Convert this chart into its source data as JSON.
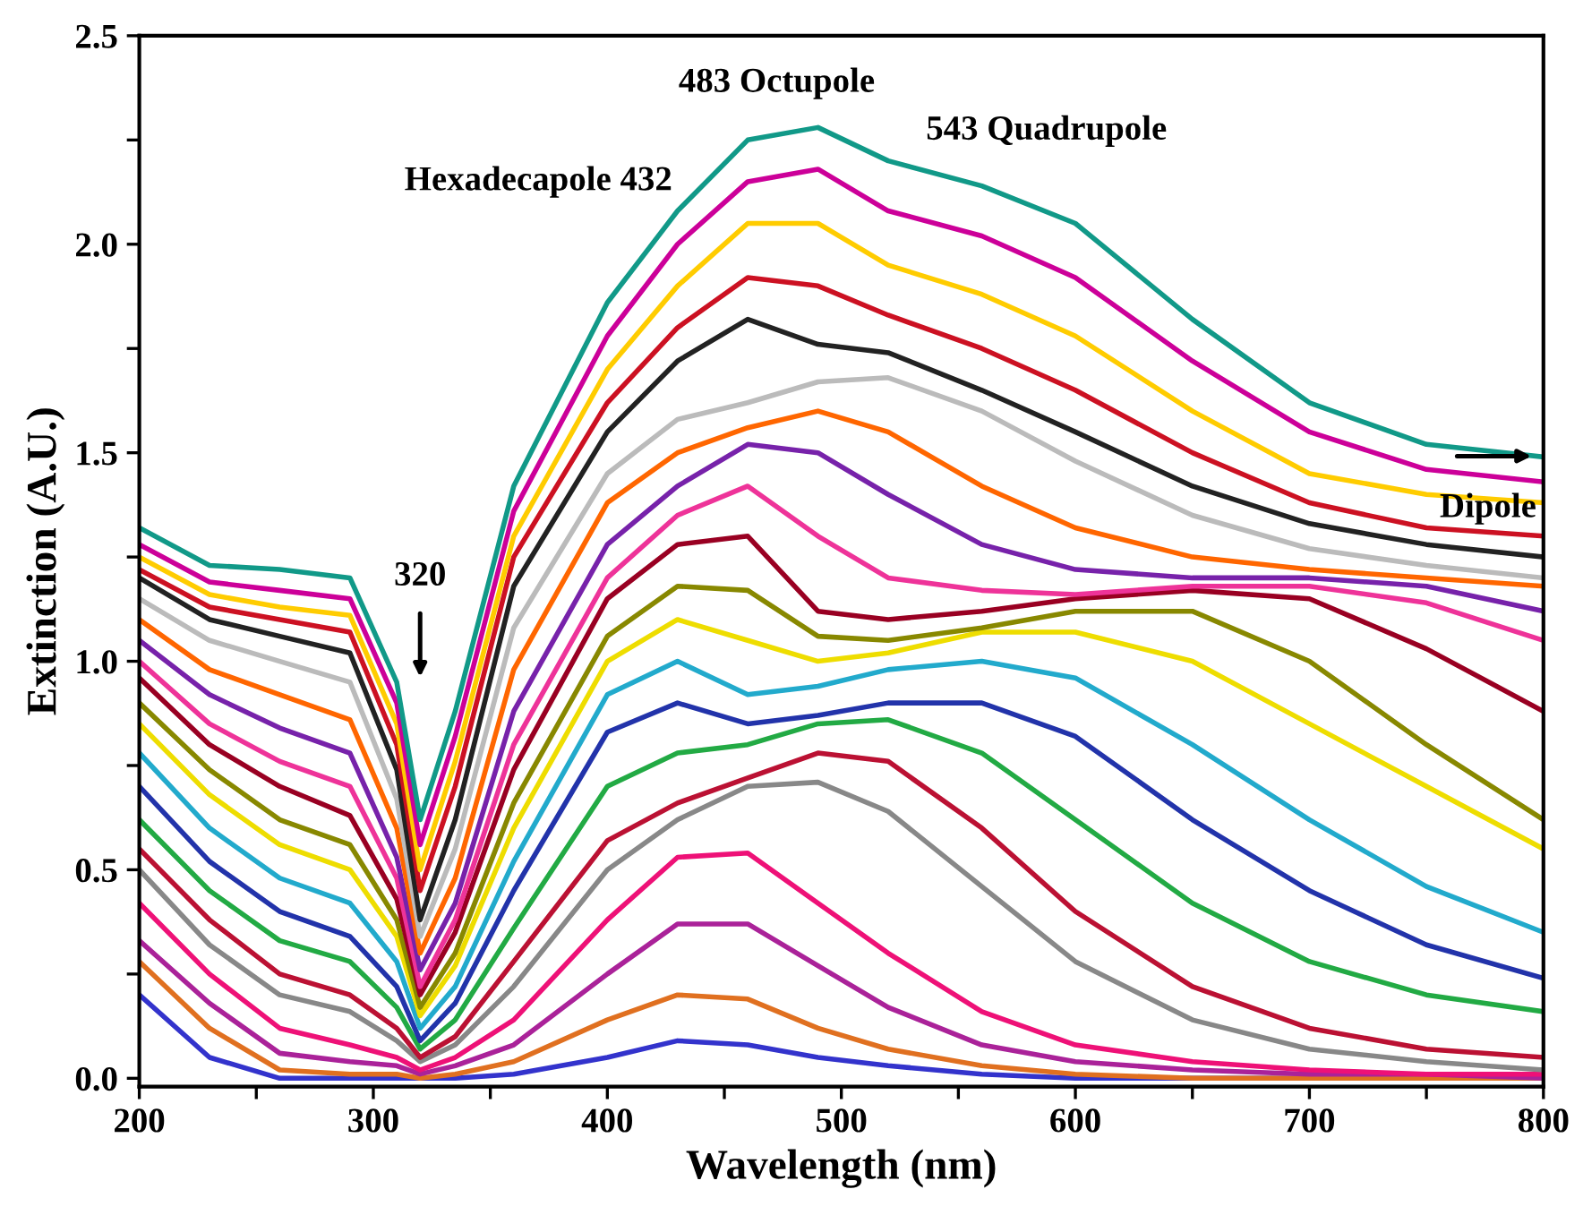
{
  "chart_data": {
    "type": "line",
    "xlabel": "Wavelength (nm)",
    "ylabel": "Extinction (A.U.)",
    "x": [
      200,
      230,
      260,
      290,
      310,
      320,
      335,
      360,
      400,
      430,
      460,
      490,
      520,
      560,
      600,
      650,
      700,
      750,
      800
    ],
    "xlim": [
      200,
      800
    ],
    "ylim": [
      -0.02,
      2.5
    ],
    "xticks": [
      200,
      {
        "value": 250,
        "label": null
      },
      300,
      {
        "value": 350,
        "label": null
      },
      400,
      {
        "value": 450,
        "label": null
      },
      500,
      {
        "value": 550,
        "label": null
      },
      600,
      {
        "value": 650,
        "label": null
      },
      700,
      {
        "value": 750,
        "label": null
      },
      800
    ],
    "yticks": [
      {
        "value": 0,
        "label": "0.0"
      },
      {
        "value": 0.25,
        "label": null
      },
      0.5,
      {
        "value": 0.75,
        "label": null
      },
      {
        "value": 1,
        "label": "1.0"
      },
      {
        "value": 1.25,
        "label": null
      },
      1.5,
      {
        "value": 1.75,
        "label": null
      },
      {
        "value": 2,
        "label": "2.0"
      },
      {
        "value": 2.25,
        "label": null
      },
      2.5
    ],
    "grid": false,
    "marker": "none",
    "line_style": "solid",
    "series": [
      {
        "color": "#3333cc",
        "values": [
          0.2,
          0.05,
          0.0,
          0.0,
          0.0,
          0.0,
          0.0,
          0.01,
          0.05,
          0.09,
          0.08,
          0.05,
          0.03,
          0.01,
          0.0,
          0.0,
          0.0,
          null,
          null
        ]
      },
      {
        "color": "#e07020",
        "values": [
          0.28,
          0.12,
          0.02,
          0.01,
          0.01,
          0.0,
          0.01,
          0.04,
          0.14,
          0.2,
          0.19,
          0.12,
          0.07,
          0.03,
          0.01,
          0.0,
          0.0,
          0.0,
          0.0
        ]
      },
      {
        "color": "#aa2299",
        "values": [
          0.33,
          0.18,
          0.06,
          0.04,
          0.03,
          0.01,
          0.03,
          0.08,
          0.25,
          0.37,
          0.37,
          0.27,
          0.17,
          0.08,
          0.04,
          0.02,
          0.01,
          0.01,
          0.0
        ]
      },
      {
        "color": "#ee1177",
        "values": [
          0.42,
          0.25,
          0.12,
          0.08,
          0.05,
          0.02,
          0.05,
          0.14,
          0.38,
          0.53,
          0.54,
          0.42,
          0.3,
          0.16,
          0.08,
          0.04,
          0.02,
          0.01,
          0.01
        ]
      },
      {
        "color": "#888888",
        "values": [
          0.5,
          0.32,
          0.2,
          0.16,
          0.09,
          0.04,
          0.08,
          0.22,
          0.5,
          0.62,
          0.7,
          0.71,
          0.64,
          0.46,
          0.28,
          0.14,
          0.07,
          0.04,
          0.02
        ]
      },
      {
        "color": "#bb1133",
        "values": [
          0.55,
          0.38,
          0.25,
          0.2,
          0.12,
          0.05,
          0.1,
          0.28,
          0.57,
          0.66,
          0.72,
          0.78,
          0.76,
          0.6,
          0.4,
          0.22,
          0.12,
          0.07,
          0.05
        ]
      },
      {
        "color": "#22aa44",
        "values": [
          0.62,
          0.45,
          0.33,
          0.28,
          0.17,
          0.07,
          0.14,
          0.36,
          0.7,
          0.78,
          0.8,
          0.85,
          0.86,
          0.78,
          0.62,
          0.42,
          0.28,
          0.2,
          0.16
        ]
      },
      {
        "color": "#2233aa",
        "values": [
          0.7,
          0.52,
          0.4,
          0.34,
          0.22,
          0.09,
          0.18,
          0.45,
          0.83,
          0.9,
          0.85,
          0.87,
          0.9,
          0.9,
          0.82,
          0.62,
          0.45,
          0.32,
          0.24
        ]
      },
      {
        "color": "#22aacc",
        "values": [
          0.78,
          0.6,
          0.48,
          0.42,
          0.28,
          0.12,
          0.22,
          0.52,
          0.92,
          1.0,
          0.92,
          0.94,
          0.98,
          1.0,
          0.96,
          0.8,
          0.62,
          0.46,
          0.35
        ]
      },
      {
        "color": "#eedd00",
        "values": [
          0.85,
          0.68,
          0.56,
          0.5,
          0.34,
          0.15,
          0.27,
          0.6,
          1.0,
          1.1,
          1.05,
          1.0,
          1.02,
          1.07,
          1.07,
          1.0,
          0.85,
          0.7,
          0.55
        ]
      },
      {
        "color": "#888800",
        "values": [
          0.9,
          0.74,
          0.62,
          0.56,
          0.38,
          0.17,
          0.3,
          0.66,
          1.06,
          1.18,
          1.17,
          1.06,
          1.05,
          1.08,
          1.12,
          1.12,
          1.0,
          0.8,
          0.62
        ]
      },
      {
        "color": "#990022",
        "values": [
          0.96,
          0.8,
          0.7,
          0.63,
          0.43,
          0.2,
          0.35,
          0.74,
          1.15,
          1.28,
          1.3,
          1.12,
          1.1,
          1.12,
          1.15,
          1.17,
          1.15,
          1.03,
          0.88
        ]
      },
      {
        "color": "#ee3399",
        "values": [
          1.0,
          0.85,
          0.76,
          0.7,
          0.48,
          0.22,
          0.38,
          0.8,
          1.2,
          1.35,
          1.42,
          1.3,
          1.2,
          1.17,
          1.16,
          1.18,
          1.18,
          1.14,
          1.05
        ]
      },
      {
        "color": "#7722aa",
        "values": [
          1.05,
          0.92,
          0.84,
          0.78,
          0.53,
          0.26,
          0.42,
          0.88,
          1.28,
          1.42,
          1.52,
          1.5,
          1.4,
          1.28,
          1.22,
          1.2,
          1.2,
          1.18,
          1.12
        ]
      },
      {
        "color": "#ff6600",
        "values": [
          1.1,
          0.98,
          0.92,
          0.86,
          0.6,
          0.3,
          0.48,
          0.98,
          1.38,
          1.5,
          1.56,
          1.6,
          1.55,
          1.42,
          1.32,
          1.25,
          1.22,
          1.2,
          1.18
        ]
      },
      {
        "color": "#bbbbbb",
        "values": [
          1.15,
          1.05,
          1.0,
          0.95,
          0.67,
          0.34,
          0.55,
          1.08,
          1.45,
          1.58,
          1.62,
          1.67,
          1.68,
          1.6,
          1.48,
          1.35,
          1.27,
          1.23,
          1.2
        ]
      },
      {
        "color": "#222222",
        "values": [
          1.2,
          1.1,
          1.06,
          1.02,
          0.74,
          0.38,
          0.62,
          1.18,
          1.55,
          1.72,
          1.82,
          1.76,
          1.74,
          1.65,
          1.55,
          1.42,
          1.33,
          1.28,
          1.25
        ]
      },
      {
        "color": "#cc1122",
        "values": [
          1.22,
          1.13,
          1.1,
          1.07,
          0.8,
          0.45,
          0.7,
          1.25,
          1.62,
          1.8,
          1.92,
          1.9,
          1.83,
          1.75,
          1.65,
          1.5,
          1.38,
          1.32,
          1.3
        ]
      },
      {
        "color": "#ffcc00",
        "values": [
          1.25,
          1.16,
          1.13,
          1.11,
          0.85,
          0.5,
          0.76,
          1.3,
          1.7,
          1.9,
          2.05,
          2.05,
          1.95,
          1.88,
          1.78,
          1.6,
          1.45,
          1.4,
          1.38
        ]
      },
      {
        "color": "#cc0099",
        "values": [
          1.28,
          1.19,
          1.17,
          1.15,
          0.9,
          0.56,
          0.82,
          1.36,
          1.78,
          2.0,
          2.15,
          2.18,
          2.08,
          2.02,
          1.92,
          1.72,
          1.55,
          1.46,
          1.43
        ]
      },
      {
        "color": "#119988",
        "values": [
          1.32,
          1.23,
          1.22,
          1.2,
          0.95,
          0.62,
          0.88,
          1.42,
          1.86,
          2.08,
          2.25,
          2.28,
          2.2,
          2.14,
          2.05,
          1.82,
          1.62,
          1.52,
          1.49
        ]
      }
    ],
    "annotations": [
      {
        "text": "Hexadecapole 432",
        "x": 432,
        "y": 2.1
      },
      {
        "text": "483 Octupole",
        "x": 483,
        "y": 2.3
      },
      {
        "text": "543 Quadrupole",
        "x": 543,
        "y": 2.15
      },
      "320",
      "Dipole"
    ]
  }
}
